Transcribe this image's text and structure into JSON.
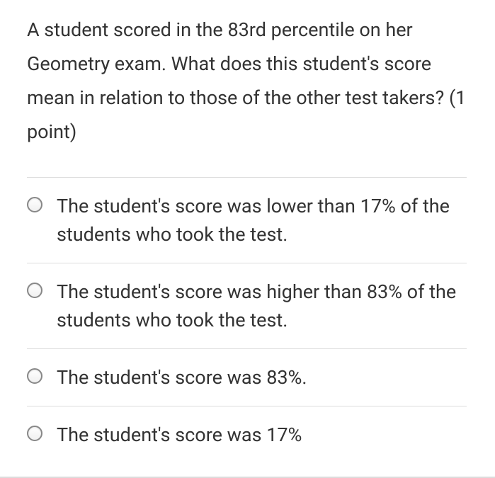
{
  "question": {
    "text": "A student scored in the 83rd percentile on her Geometry exam. What does this student's score mean in relation to those of the other test takers? (1 point)"
  },
  "options": [
    {
      "text": "The student's score was lower than 17% of the students who took the test."
    },
    {
      "text": "The student's score was higher than 83% of the students who took the test."
    },
    {
      "text": "The student's score was 83%."
    },
    {
      "text": "The student's score was 17%"
    }
  ]
}
